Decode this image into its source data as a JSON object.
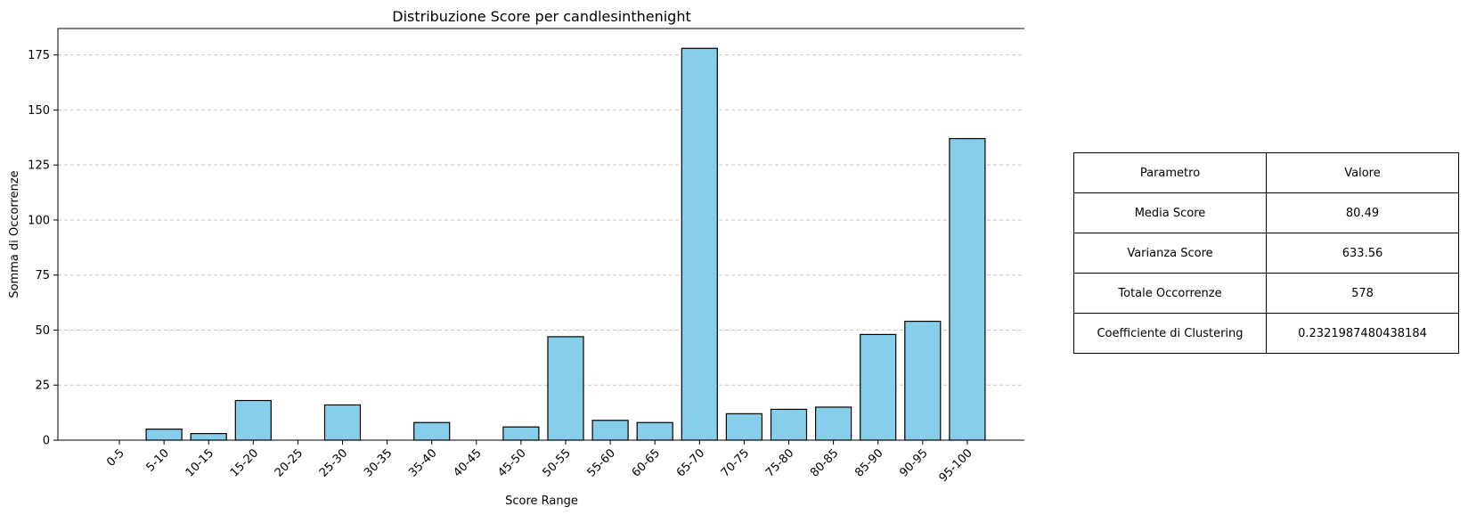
{
  "chart_data": {
    "type": "bar",
    "title": "Distribuzione Score per candlesinthenight",
    "xlabel": "Score Range",
    "ylabel": "Somma di Occorrenze",
    "categories": [
      "0-5",
      "5-10",
      "10-15",
      "15-20",
      "20-25",
      "25-30",
      "30-35",
      "35-40",
      "40-45",
      "45-50",
      "50-55",
      "55-60",
      "60-65",
      "65-70",
      "70-75",
      "75-80",
      "80-85",
      "85-90",
      "90-95",
      "95-100"
    ],
    "values": [
      0,
      5,
      3,
      18,
      0,
      16,
      0,
      8,
      0,
      6,
      47,
      9,
      8,
      178,
      12,
      14,
      15,
      48,
      54,
      137
    ],
    "ylim": [
      0,
      187
    ],
    "yticks": [
      0,
      25,
      50,
      75,
      100,
      125,
      150,
      175
    ],
    "grid": "y-dashed",
    "bar_color": "#87ceeb",
    "bar_edge_color": "#000000"
  },
  "table": {
    "rows": [
      [
        "Parametro",
        "Valore"
      ],
      [
        "Media Score",
        "80.49"
      ],
      [
        "Varianza Score",
        "633.56"
      ],
      [
        "Totale Occorrenze",
        "578"
      ],
      [
        "Coefficiente di Clustering",
        "0.2321987480438184"
      ]
    ]
  }
}
